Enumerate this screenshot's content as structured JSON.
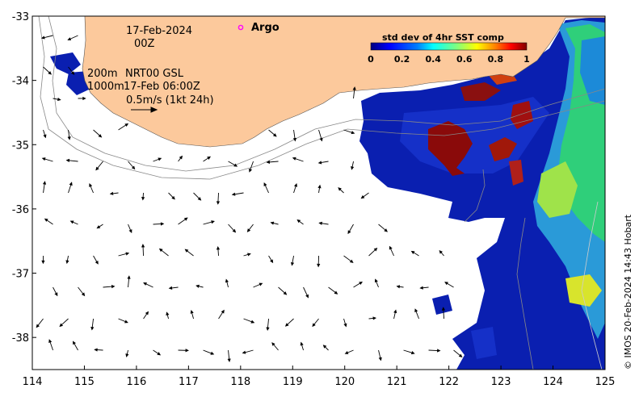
{
  "map": {
    "lon_range": [
      114,
      125
    ],
    "lat_range": [
      -38.5,
      -33
    ],
    "x_ticks": [
      "114",
      "115",
      "116",
      "117",
      "118",
      "119",
      "120",
      "121",
      "122",
      "123",
      "124",
      "125"
    ],
    "y_ticks": [
      "-33",
      "-34",
      "-35",
      "-36",
      "-37",
      "-38"
    ],
    "land_color": "#fcc99c",
    "grid": false
  },
  "annotations": {
    "date": "17-Feb-2024",
    "time": "00Z",
    "depth_shallow": "200m",
    "depth_deep": "1000m",
    "product": "NRT00 GSL",
    "product_time": "17-Feb 06:00Z",
    "scale_text": "0.5m/s (1kt 24h)",
    "argo_label": "Argo",
    "argo_color": "#ff00ff"
  },
  "colorbar": {
    "title": "std dev of 4hr SST comp",
    "ticks": [
      "0",
      "0.2",
      "0.4",
      "0.6",
      "0.8",
      "1"
    ],
    "colors": [
      "#00007f",
      "#0000ff",
      "#007fff",
      "#00ffff",
      "#7fff7f",
      "#ffff00",
      "#ff7f00",
      "#ff0000",
      "#7f0000"
    ]
  },
  "credit": "© IMOS 20-Feb-2024 14:43 Hobart"
}
